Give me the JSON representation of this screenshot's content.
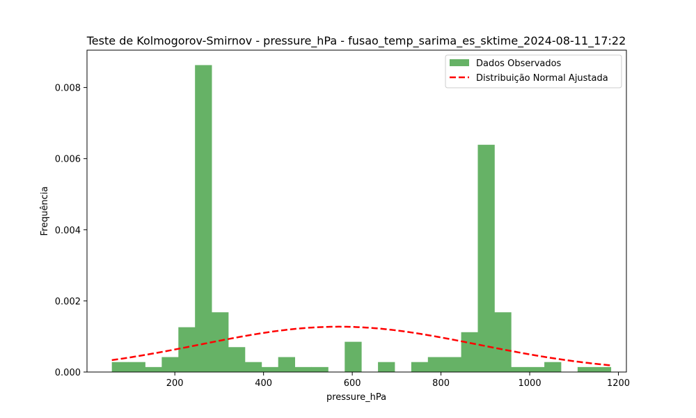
{
  "chart_data": {
    "type": "bar",
    "title": "Teste de Kolmogorov-Smirnov - pressure_hPa - fusao_temp_sarima_es_sktime_2024-08-11_17:22",
    "xlabel": "pressure_hPa",
    "ylabel": "Frequência",
    "xlim": [
      2,
      1218
    ],
    "ylim": [
      0,
      0.00905
    ],
    "x_ticks": [
      200,
      400,
      600,
      800,
      1000,
      1200
    ],
    "y_ticks": [
      0.0,
      0.002,
      0.004,
      0.006,
      0.008
    ],
    "y_tick_labels": [
      "0.000",
      "0.002",
      "0.004",
      "0.006",
      "0.008"
    ],
    "legend_position": "top-right",
    "grid": false,
    "series": [
      {
        "name": "Dados Observados",
        "kind": "histogram",
        "color": "#66b266",
        "bin_edges": [
          58,
          95.5,
          133,
          170.5,
          208,
          245.5,
          283,
          320.5,
          358,
          395.5,
          433,
          470.5,
          508,
          545.5,
          583,
          620.5,
          658,
          695.5,
          733,
          770.5,
          808,
          845.5,
          883,
          920.5,
          958,
          995.5,
          1033,
          1070.5,
          1108,
          1145.5,
          1183
        ],
        "values": [
          0.00028,
          0.00028,
          0.00014,
          0.00042,
          0.00126,
          0.00863,
          0.00168,
          0.0007,
          0.00028,
          0.00014,
          0.00042,
          0.00014,
          0.00014,
          0.0,
          0.00085,
          0.0,
          0.00028,
          0.0,
          0.00028,
          0.00042,
          0.00042,
          0.00112,
          0.00639,
          0.00168,
          0.00014,
          0.00014,
          0.00028,
          0.0,
          0.00014,
          0.00014
        ]
      },
      {
        "name": "Distribuição Normal Ajustada",
        "kind": "line",
        "style": "dashed",
        "color": "#ff0000",
        "mean": 570,
        "std": 313,
        "x_range": [
          58,
          1183
        ]
      }
    ]
  }
}
